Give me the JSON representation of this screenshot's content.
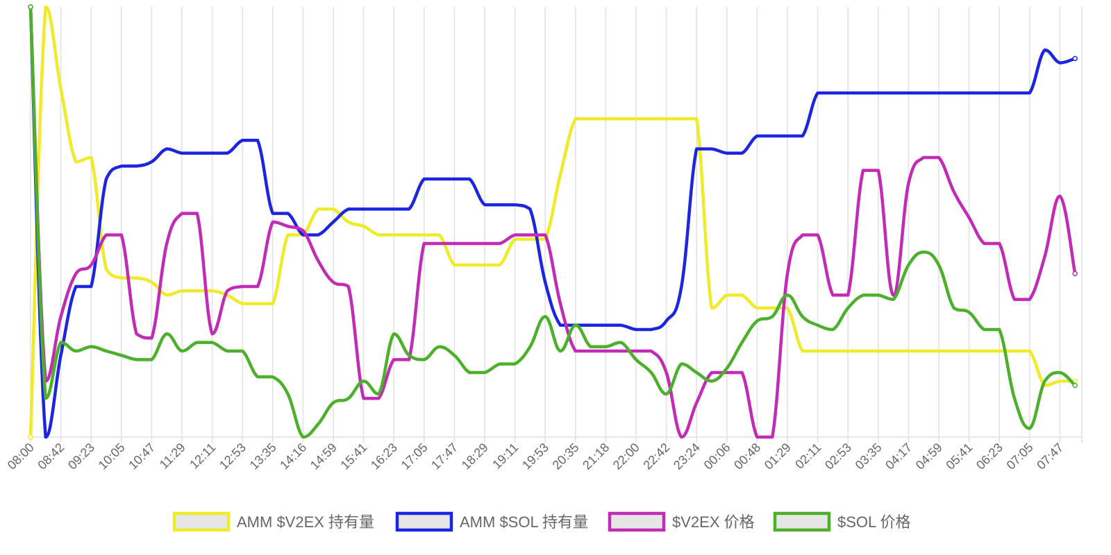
{
  "chart_data": {
    "type": "line",
    "title": "",
    "xlabel": "",
    "ylabel": "",
    "grid": {
      "x": true,
      "y": false
    },
    "legend_position": "bottom",
    "y_axis_labels_visible": false,
    "categories": [
      "08:00",
      "08:42",
      "09:23",
      "10:05",
      "10:47",
      "11:29",
      "12:11",
      "12:53",
      "13:35",
      "14:16",
      "14:59",
      "15:41",
      "16:23",
      "17:05",
      "17:47",
      "18:29",
      "19:11",
      "19:53",
      "20:35",
      "21:18",
      "22:00",
      "22:42",
      "23:24",
      "00:06",
      "00:48",
      "01:29",
      "02:11",
      "02:53",
      "03:35",
      "04:17",
      "04:59",
      "05:41",
      "06:23",
      "07:05",
      "07:47"
    ],
    "series": [
      {
        "name": "AMM $V2EX 持有量",
        "color": "#f0eb28",
        "values": [
          [
            0,
            0
          ],
          [
            0.5,
            100
          ],
          [
            1,
            81
          ],
          [
            1.5,
            64
          ],
          [
            2,
            65
          ],
          [
            2.5,
            39
          ],
          [
            3,
            37
          ],
          [
            3.5,
            37
          ],
          [
            4,
            36
          ],
          [
            4.5,
            33
          ],
          [
            5,
            34
          ],
          [
            5.5,
            34
          ],
          [
            6,
            34
          ],
          [
            6.5,
            33
          ],
          [
            7,
            31
          ],
          [
            7.5,
            31
          ],
          [
            8,
            31
          ],
          [
            8.5,
            47
          ],
          [
            9,
            47
          ],
          [
            9.5,
            53
          ],
          [
            10,
            53
          ],
          [
            10.5,
            50
          ],
          [
            11,
            49
          ],
          [
            11.5,
            47
          ],
          [
            12,
            47
          ],
          [
            12.5,
            47
          ],
          [
            13,
            47
          ],
          [
            13.5,
            47
          ],
          [
            14,
            40
          ],
          [
            14.5,
            40
          ],
          [
            15,
            40
          ],
          [
            15.5,
            40
          ],
          [
            16,
            46
          ],
          [
            16.5,
            46
          ],
          [
            17,
            46
          ],
          [
            17.5,
            61
          ],
          [
            18,
            74
          ],
          [
            18.5,
            74
          ],
          [
            19,
            74
          ],
          [
            19.5,
            74
          ],
          [
            20,
            74
          ],
          [
            20.5,
            74
          ],
          [
            21,
            74
          ],
          [
            21.5,
            74
          ],
          [
            22,
            74
          ],
          [
            22.5,
            30
          ],
          [
            23,
            33
          ],
          [
            23.5,
            33
          ],
          [
            24,
            30
          ],
          [
            24.5,
            30
          ],
          [
            25,
            30
          ],
          [
            25.5,
            20
          ],
          [
            26,
            20
          ],
          [
            26.5,
            20
          ],
          [
            27,
            20
          ],
          [
            27.5,
            20
          ],
          [
            28,
            20
          ],
          [
            28.5,
            20
          ],
          [
            29,
            20
          ],
          [
            29.5,
            20
          ],
          [
            30,
            20
          ],
          [
            30.5,
            20
          ],
          [
            31,
            20
          ],
          [
            31.5,
            20
          ],
          [
            32,
            20
          ],
          [
            32.5,
            20
          ],
          [
            33,
            20
          ],
          [
            33.5,
            12
          ],
          [
            34,
            13
          ],
          [
            34.5,
            13
          ]
        ]
      },
      {
        "name": "AMM $SOL 持有量",
        "color": "#1c25e0",
        "values": [
          [
            0,
            100
          ],
          [
            0.5,
            0
          ],
          [
            1,
            19
          ],
          [
            1.5,
            35
          ],
          [
            2,
            35
          ],
          [
            2.5,
            60
          ],
          [
            3,
            63
          ],
          [
            3.5,
            63
          ],
          [
            4,
            64
          ],
          [
            4.5,
            67
          ],
          [
            5,
            66
          ],
          [
            5.5,
            66
          ],
          [
            6,
            66
          ],
          [
            6.5,
            66
          ],
          [
            7,
            69
          ],
          [
            7.5,
            69
          ],
          [
            8,
            52
          ],
          [
            8.5,
            52
          ],
          [
            9,
            47
          ],
          [
            9.5,
            47
          ],
          [
            10,
            50
          ],
          [
            10.5,
            53
          ],
          [
            11,
            53
          ],
          [
            11.5,
            53
          ],
          [
            12,
            53
          ],
          [
            12.5,
            53
          ],
          [
            13,
            60
          ],
          [
            13.5,
            60
          ],
          [
            14,
            60
          ],
          [
            14.5,
            60
          ],
          [
            15,
            54
          ],
          [
            15.5,
            54
          ],
          [
            16,
            54
          ],
          [
            16.5,
            53
          ],
          [
            17,
            36
          ],
          [
            17.5,
            26
          ],
          [
            18,
            26
          ],
          [
            18.5,
            26
          ],
          [
            19,
            26
          ],
          [
            19.5,
            26
          ],
          [
            20,
            25
          ],
          [
            20.5,
            25
          ],
          [
            21,
            27
          ],
          [
            21.5,
            35
          ],
          [
            22,
            67
          ],
          [
            22.5,
            67
          ],
          [
            23,
            66
          ],
          [
            23.5,
            66
          ],
          [
            24,
            70
          ],
          [
            24.5,
            70
          ],
          [
            25,
            70
          ],
          [
            25.5,
            70
          ],
          [
            26,
            80
          ],
          [
            26.5,
            80
          ],
          [
            27,
            80
          ],
          [
            27.5,
            80
          ],
          [
            28,
            80
          ],
          [
            28.5,
            80
          ],
          [
            29,
            80
          ],
          [
            29.5,
            80
          ],
          [
            30,
            80
          ],
          [
            30.5,
            80
          ],
          [
            31,
            80
          ],
          [
            31.5,
            80
          ],
          [
            32,
            80
          ],
          [
            32.5,
            80
          ],
          [
            33,
            80
          ],
          [
            33.5,
            90
          ],
          [
            34,
            87
          ],
          [
            34.5,
            88
          ]
        ]
      },
      {
        "name": "$V2EX 价格",
        "color": "#c22bb5",
        "values": [
          [
            0,
            100
          ],
          [
            0.5,
            13
          ],
          [
            1,
            28
          ],
          [
            1.5,
            38
          ],
          [
            2,
            40
          ],
          [
            2.5,
            47
          ],
          [
            3,
            47
          ],
          [
            3.5,
            24
          ],
          [
            4,
            23
          ],
          [
            4.5,
            45
          ],
          [
            5,
            52
          ],
          [
            5.5,
            52
          ],
          [
            6,
            24
          ],
          [
            6.5,
            34
          ],
          [
            7,
            35
          ],
          [
            7.5,
            35
          ],
          [
            8,
            50
          ],
          [
            8.5,
            49
          ],
          [
            9,
            48
          ],
          [
            9.5,
            41
          ],
          [
            10,
            36
          ],
          [
            10.5,
            35
          ],
          [
            11,
            9
          ],
          [
            11.5,
            9
          ],
          [
            12,
            18
          ],
          [
            12.5,
            18
          ],
          [
            13,
            45
          ],
          [
            13.5,
            45
          ],
          [
            14,
            45
          ],
          [
            14.5,
            45
          ],
          [
            15,
            45
          ],
          [
            15.5,
            45
          ],
          [
            16,
            47
          ],
          [
            16.5,
            47
          ],
          [
            17,
            47
          ],
          [
            17.5,
            31
          ],
          [
            18,
            20
          ],
          [
            18.5,
            20
          ],
          [
            19,
            20
          ],
          [
            19.5,
            20
          ],
          [
            20,
            20
          ],
          [
            20.5,
            20
          ],
          [
            21,
            15
          ],
          [
            21.5,
            0
          ],
          [
            22,
            8
          ],
          [
            22.5,
            15
          ],
          [
            23,
            15
          ],
          [
            23.5,
            15
          ],
          [
            24,
            0
          ],
          [
            24.5,
            0
          ],
          [
            25,
            38
          ],
          [
            25.5,
            47
          ],
          [
            26,
            47
          ],
          [
            26.5,
            33
          ],
          [
            27,
            33
          ],
          [
            27.5,
            62
          ],
          [
            28,
            62
          ],
          [
            28.5,
            33
          ],
          [
            29,
            59
          ],
          [
            29.5,
            65
          ],
          [
            30,
            65
          ],
          [
            30.5,
            57
          ],
          [
            31,
            51
          ],
          [
            31.5,
            45
          ],
          [
            32,
            45
          ],
          [
            32.5,
            32
          ],
          [
            33,
            32
          ],
          [
            33.5,
            42
          ],
          [
            34,
            56
          ],
          [
            34.5,
            38
          ]
        ]
      },
      {
        "name": "$SOL 价格",
        "color": "#4cb02a",
        "values": [
          [
            0,
            100
          ],
          [
            0.5,
            9
          ],
          [
            1,
            22
          ],
          [
            1.5,
            20
          ],
          [
            2,
            21
          ],
          [
            2.5,
            20
          ],
          [
            3,
            19
          ],
          [
            3.5,
            18
          ],
          [
            4,
            18
          ],
          [
            4.5,
            24
          ],
          [
            5,
            20
          ],
          [
            5.5,
            22
          ],
          [
            6,
            22
          ],
          [
            6.5,
            20
          ],
          [
            7,
            20
          ],
          [
            7.5,
            14
          ],
          [
            8,
            14
          ],
          [
            8.5,
            10
          ],
          [
            9,
            0
          ],
          [
            9.5,
            3
          ],
          [
            10,
            8
          ],
          [
            10.5,
            9
          ],
          [
            11,
            13
          ],
          [
            11.5,
            10
          ],
          [
            12,
            24
          ],
          [
            12.5,
            19
          ],
          [
            13,
            18
          ],
          [
            13.5,
            21
          ],
          [
            14,
            19
          ],
          [
            14.5,
            15
          ],
          [
            15,
            15
          ],
          [
            15.5,
            17
          ],
          [
            16,
            17
          ],
          [
            16.5,
            21
          ],
          [
            17,
            28
          ],
          [
            17.5,
            20
          ],
          [
            18,
            26
          ],
          [
            18.5,
            21
          ],
          [
            19,
            21
          ],
          [
            19.5,
            22
          ],
          [
            20,
            18
          ],
          [
            20.5,
            15
          ],
          [
            21,
            10
          ],
          [
            21.5,
            17
          ],
          [
            22,
            15
          ],
          [
            22.5,
            13
          ],
          [
            23,
            16
          ],
          [
            23.5,
            22
          ],
          [
            24,
            27
          ],
          [
            24.5,
            28
          ],
          [
            25,
            33
          ],
          [
            25.5,
            28
          ],
          [
            26,
            26
          ],
          [
            26.5,
            25
          ],
          [
            27,
            30
          ],
          [
            27.5,
            33
          ],
          [
            28,
            33
          ],
          [
            28.5,
            32
          ],
          [
            29,
            40
          ],
          [
            29.5,
            43
          ],
          [
            30,
            40
          ],
          [
            30.5,
            30
          ],
          [
            31,
            29
          ],
          [
            31.5,
            25
          ],
          [
            32,
            25
          ],
          [
            32.5,
            9
          ],
          [
            33,
            2
          ],
          [
            33.5,
            13
          ],
          [
            34,
            15
          ],
          [
            34.5,
            12
          ]
        ]
      }
    ],
    "ylim": [
      0,
      100
    ],
    "xlim": [
      0,
      34.5
    ]
  }
}
